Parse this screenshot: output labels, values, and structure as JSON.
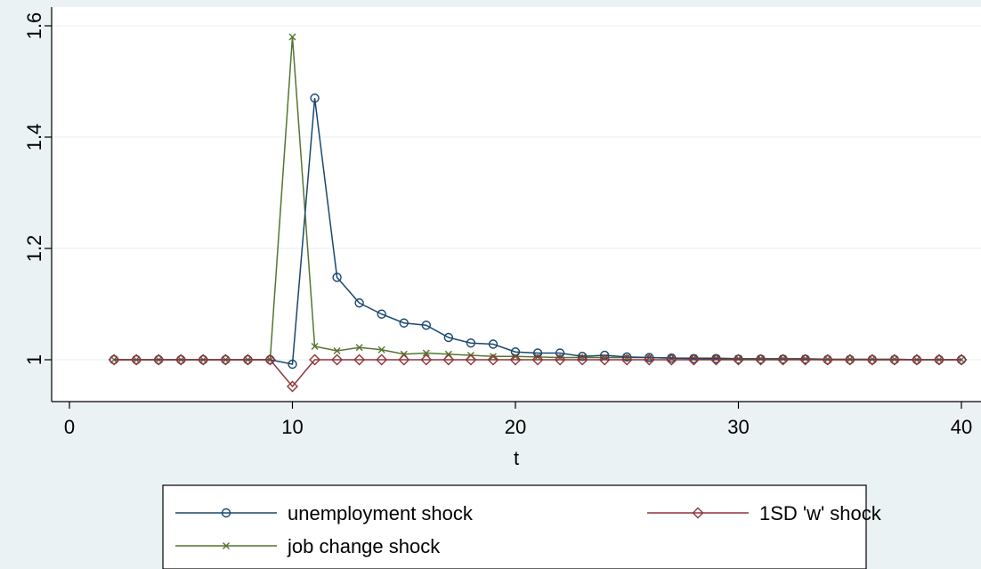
{
  "chart_data": {
    "type": "line",
    "xlabel": "t",
    "ylabel": "",
    "xlim": [
      -1,
      40.5
    ],
    "ylim": [
      0.925,
      1.62
    ],
    "xticks": [
      0,
      10,
      20,
      30,
      40
    ],
    "yticks": [
      1,
      1.2,
      1.4,
      1.6
    ],
    "ytick_labels": [
      "1",
      "1.2",
      "1.4",
      "1.6"
    ],
    "grid": "horizontal",
    "legend_position": "bottom",
    "x": [
      2,
      3,
      4,
      5,
      6,
      7,
      8,
      9,
      10,
      11,
      12,
      13,
      14,
      15,
      16,
      17,
      18,
      19,
      20,
      21,
      22,
      23,
      24,
      25,
      26,
      27,
      28,
      29,
      30,
      31,
      32,
      33,
      34,
      35,
      36,
      37,
      38,
      39,
      40
    ],
    "series": [
      {
        "name": "unemployment shock",
        "color": "#1a476f",
        "marker": "circle",
        "values": [
          1,
          1,
          1,
          1,
          1,
          1,
          1,
          1,
          0.992,
          1.47,
          1.148,
          1.102,
          1.082,
          1.066,
          1.062,
          1.04,
          1.03,
          1.028,
          1.014,
          1.012,
          1.012,
          1.006,
          1.008,
          1.005,
          1.004,
          1.003,
          1.002,
          1.002,
          1.001,
          1.001,
          1.001,
          1.001,
          1,
          1,
          1,
          1,
          1,
          1,
          1
        ]
      },
      {
        "name": "1SD 'w' shock",
        "color": "#90353b",
        "marker": "diamond",
        "values": [
          1,
          1,
          1,
          1,
          1,
          1,
          1,
          1,
          0.952,
          1,
          1,
          1,
          1,
          1,
          1,
          1,
          1,
          1,
          1,
          1,
          1,
          1,
          1,
          1,
          1,
          1,
          1,
          1,
          1,
          1,
          1,
          1,
          1,
          1,
          1,
          1,
          1,
          1,
          1
        ]
      },
      {
        "name": "job change shock",
        "color": "#55752f",
        "marker": "x",
        "values": [
          1,
          1,
          1,
          1,
          1,
          1,
          1,
          1,
          1.58,
          1.024,
          1.016,
          1.022,
          1.018,
          1.01,
          1.012,
          1.01,
          1.008,
          1.006,
          1.006,
          1.005,
          1.004,
          1.004,
          1.004,
          1.004,
          1.004,
          1.003,
          1.003,
          1.003,
          1.002,
          1.002,
          1.002,
          1.002,
          1.001,
          1.001,
          1.001,
          1.001,
          1,
          1,
          1
        ]
      }
    ]
  }
}
